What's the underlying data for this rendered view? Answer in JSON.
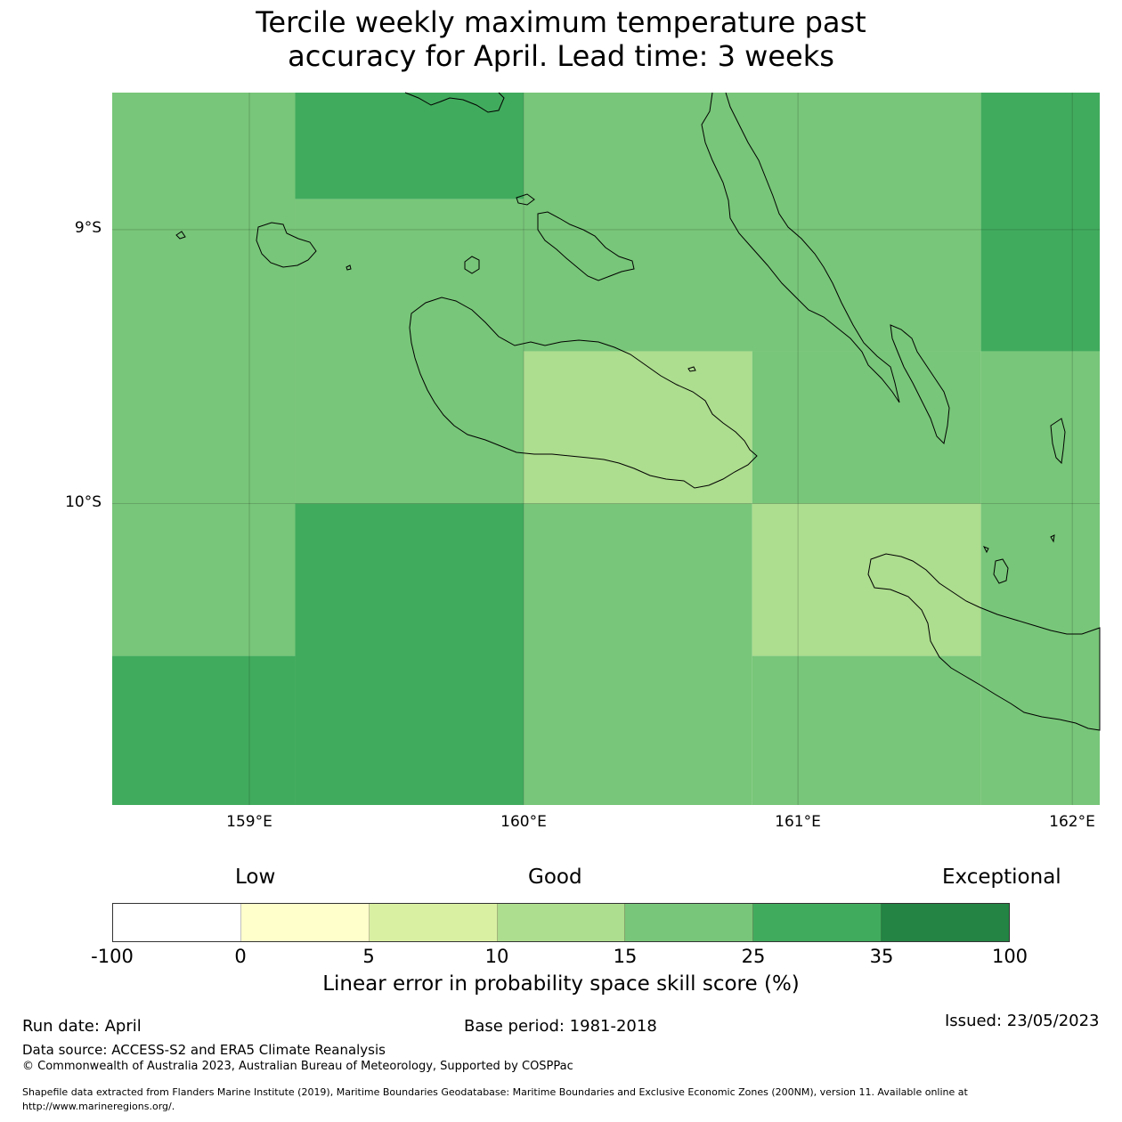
{
  "title": {
    "line1": "Tercile weekly maximum temperature past",
    "line2": "accuracy for April. Lead time: 3 weeks"
  },
  "map": {
    "lat_labels": [
      "9°S",
      "10°S"
    ],
    "lon_labels": [
      "159°E",
      "160°E",
      "161°E",
      "162°E"
    ],
    "extent": {
      "lon_min": 158.5,
      "lon_max": 162.1,
      "lat_min": -11.1,
      "lat_max": -8.5
    },
    "cells": [
      {
        "lon0": 158.5,
        "lon1": 159.167,
        "lat0": -8.5,
        "lat1": -10.0,
        "category": "15-25"
      },
      {
        "lon0": 159.167,
        "lon1": 160.0,
        "lat0": -8.5,
        "lat1": -8.889,
        "category": "25-35"
      },
      {
        "lon0": 159.167,
        "lon1": 160.0,
        "lat0": -8.889,
        "lat1": -10.0,
        "category": "15-25"
      },
      {
        "lon0": 160.0,
        "lon1": 161.667,
        "lat0": -8.5,
        "lat1": -9.444,
        "category": "15-25"
      },
      {
        "lon0": 160.0,
        "lon1": 160.833,
        "lat0": -9.444,
        "lat1": -10.0,
        "category": "10-15"
      },
      {
        "lon0": 160.833,
        "lon1": 161.667,
        "lat0": -9.444,
        "lat1": -10.0,
        "category": "15-25"
      },
      {
        "lon0": 161.667,
        "lon1": 162.1,
        "lat0": -8.5,
        "lat1": -9.444,
        "category": "25-35"
      },
      {
        "lon0": 161.667,
        "lon1": 162.1,
        "lat0": -9.444,
        "lat1": -10.0,
        "category": "15-25"
      },
      {
        "lon0": 158.5,
        "lon1": 159.167,
        "lat0": -10.0,
        "lat1": -10.556,
        "category": "15-25"
      },
      {
        "lon0": 158.5,
        "lon1": 159.167,
        "lat0": -10.556,
        "lat1": -11.1,
        "category": "25-35"
      },
      {
        "lon0": 159.167,
        "lon1": 160.0,
        "lat0": -10.0,
        "lat1": -11.1,
        "category": "25-35"
      },
      {
        "lon0": 160.0,
        "lon1": 160.833,
        "lat0": -10.0,
        "lat1": -11.1,
        "category": "15-25"
      },
      {
        "lon0": 160.833,
        "lon1": 161.667,
        "lat0": -10.0,
        "lat1": -10.556,
        "category": "10-15"
      },
      {
        "lon0": 160.833,
        "lon1": 161.667,
        "lat0": -10.556,
        "lat1": -11.1,
        "category": "15-25"
      },
      {
        "lon0": 161.667,
        "lon1": 162.1,
        "lat0": -10.0,
        "lat1": -11.1,
        "category": "15-25"
      }
    ]
  },
  "colorbar": {
    "category_labels": [
      "Low",
      "Good",
      "Exceptional"
    ],
    "ticks": [
      "-100",
      "0",
      "5",
      "10",
      "15",
      "25",
      "35",
      "100"
    ],
    "colors": [
      "#ffffff",
      "#ffffcc",
      "#d9f0a3",
      "#addd8e",
      "#78c679",
      "#41ab5d",
      "#238443"
    ],
    "category_colors": {
      "10-15": "#addd8e",
      "15-25": "#78c679",
      "25-35": "#41ab5d"
    },
    "label": "Linear error in probability space skill score (%)"
  },
  "footer": {
    "run_date": "Run date: April",
    "base_period": "Base period: 1981-2018",
    "issued": "Issued: 23/05/2023",
    "data_source": "Data source: ACCESS-S2 and ERA5 Climate Reanalysis",
    "copyright": "© Commonwealth of Australia 2023, Australian Bureau of Meteorology, Supported by COSPPac",
    "shapefile_line1": "Shapefile data extracted from Flanders Marine Institute (2019), Maritime Boundaries Geodatabase: Maritime Boundaries and Exclusive Economic Zones (200NM), version 11. Available online at",
    "shapefile_line2": "http://www.marineregions.org/."
  }
}
